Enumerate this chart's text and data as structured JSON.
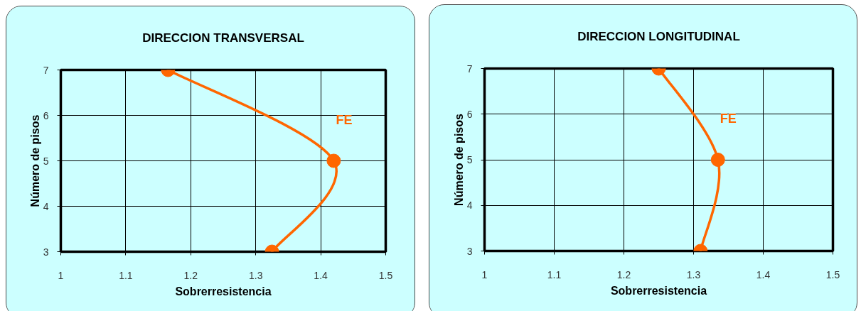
{
  "chart_data": [
    {
      "type": "line",
      "title": "DIRECCION TRANSVERSAL",
      "xlabel": "Sobrerresistencia",
      "ylabel": "Número de pisos",
      "xlim": [
        1,
        1.5
      ],
      "xticks": [
        1,
        1.1,
        1.2,
        1.3,
        1.4,
        1.5
      ],
      "ylim": [
        3,
        7
      ],
      "yticks": [
        3,
        4,
        5,
        6,
        7
      ],
      "grid": true,
      "marker": "circle",
      "line_style": "solid",
      "series": [
        {
          "name": "FE",
          "color": "#ff6600",
          "x": [
            1.165,
            1.42,
            1.325
          ],
          "values": [
            7,
            5,
            3
          ]
        }
      ]
    },
    {
      "type": "line",
      "title": "DIRECCION LONGITUDINAL",
      "xlabel": "Sobrerresistencia",
      "ylabel": "Número de pisos",
      "xlim": [
        1,
        1.5
      ],
      "xticks": [
        1,
        1.1,
        1.2,
        1.3,
        1.4,
        1.5
      ],
      "ylim": [
        3,
        7
      ],
      "yticks": [
        3,
        4,
        5,
        6,
        7
      ],
      "grid": true,
      "marker": "circle",
      "line_style": "solid",
      "series": [
        {
          "name": "FE",
          "color": "#ff6600",
          "x": [
            1.25,
            1.335,
            1.31
          ],
          "values": [
            7,
            5,
            3
          ]
        }
      ]
    }
  ]
}
